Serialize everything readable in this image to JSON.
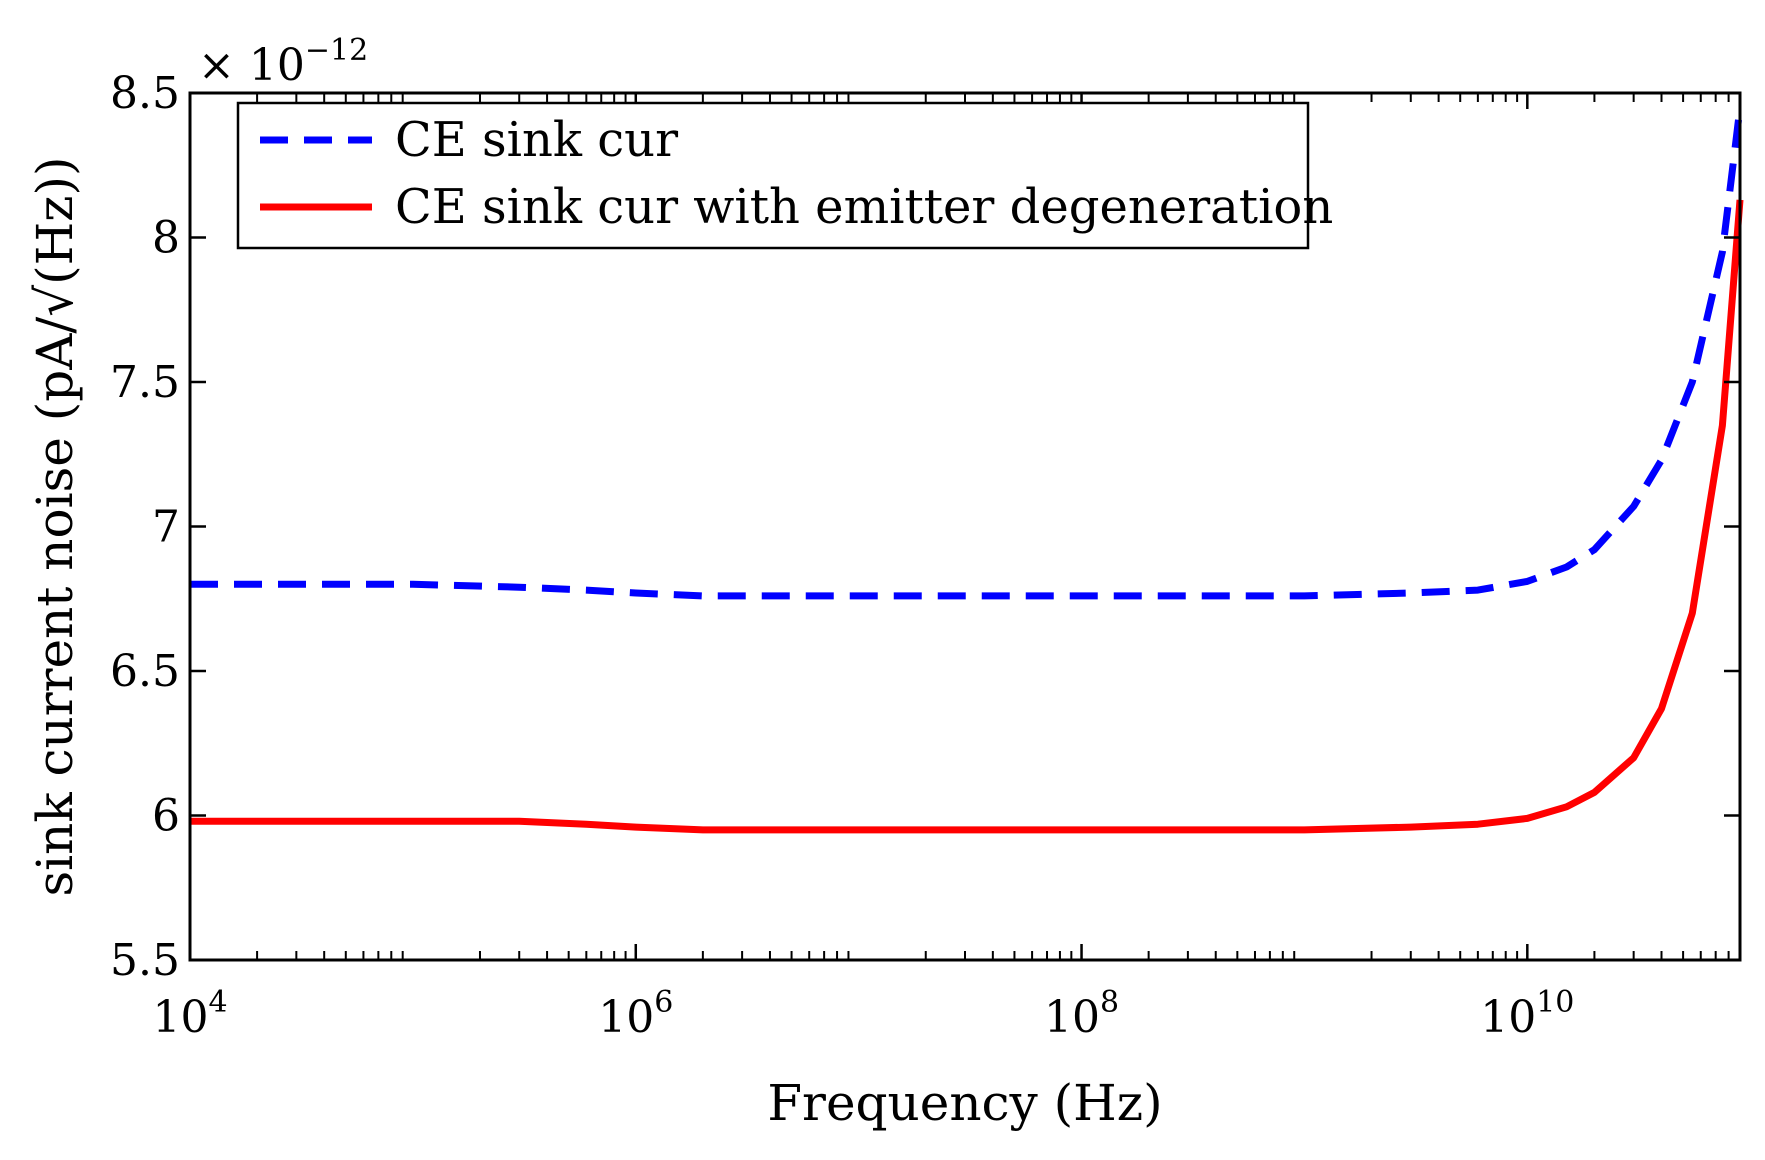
{
  "chart_data": {
    "type": "line",
    "xscale": "log",
    "xlabel": "Frequency (Hz)",
    "ylabel": "sink current noise (pA/√(Hz))",
    "y_multiplier": "× 10",
    "y_multiplier_exp": "−12",
    "xlim": [
      10000,
      90000000000
    ],
    "ylim": [
      5.5,
      8.5
    ],
    "x_ticks": [
      {
        "value": 10000,
        "base": "10",
        "exp": "4"
      },
      {
        "value": 1000000,
        "base": "10",
        "exp": "6"
      },
      {
        "value": 100000000,
        "base": "10",
        "exp": "8"
      },
      {
        "value": 10000000000,
        "base": "10",
        "exp": "10"
      }
    ],
    "y_ticks": [
      {
        "value": 5.5,
        "label": "5.5"
      },
      {
        "value": 6,
        "label": "6"
      },
      {
        "value": 6.5,
        "label": "6.5"
      },
      {
        "value": 7,
        "label": "7"
      },
      {
        "value": 7.5,
        "label": "7.5"
      },
      {
        "value": 8,
        "label": "8"
      },
      {
        "value": 8.5,
        "label": "8.5"
      }
    ],
    "grid": false,
    "legend_position": "top-left",
    "series": [
      {
        "name": "CE sink cur",
        "color": "#0000ff",
        "style": "dashed",
        "x": [
          10000,
          100000,
          300000,
          600000,
          1000000,
          2000000,
          10000000,
          100000000,
          1000000000,
          3000000000,
          6000000000,
          10000000000,
          15000000000,
          20000000000,
          30000000000,
          40000000000,
          55000000000,
          75000000000,
          90000000000
        ],
        "y": [
          6.8,
          6.8,
          6.79,
          6.78,
          6.77,
          6.76,
          6.76,
          6.76,
          6.76,
          6.77,
          6.78,
          6.81,
          6.86,
          6.92,
          7.07,
          7.23,
          7.5,
          7.95,
          8.45
        ]
      },
      {
        "name": "CE sink cur with emitter degeneration",
        "color": "#ff0000",
        "style": "solid",
        "x": [
          10000,
          100000,
          300000,
          600000,
          1000000,
          2000000,
          10000000,
          100000000,
          1000000000,
          3000000000,
          6000000000,
          10000000000,
          15000000000,
          20000000000,
          30000000000,
          40000000000,
          55000000000,
          75000000000,
          90000000000
        ],
        "y": [
          5.98,
          5.98,
          5.98,
          5.97,
          5.96,
          5.95,
          5.95,
          5.95,
          5.95,
          5.96,
          5.97,
          5.99,
          6.03,
          6.08,
          6.2,
          6.37,
          6.7,
          7.35,
          8.13
        ]
      }
    ]
  }
}
